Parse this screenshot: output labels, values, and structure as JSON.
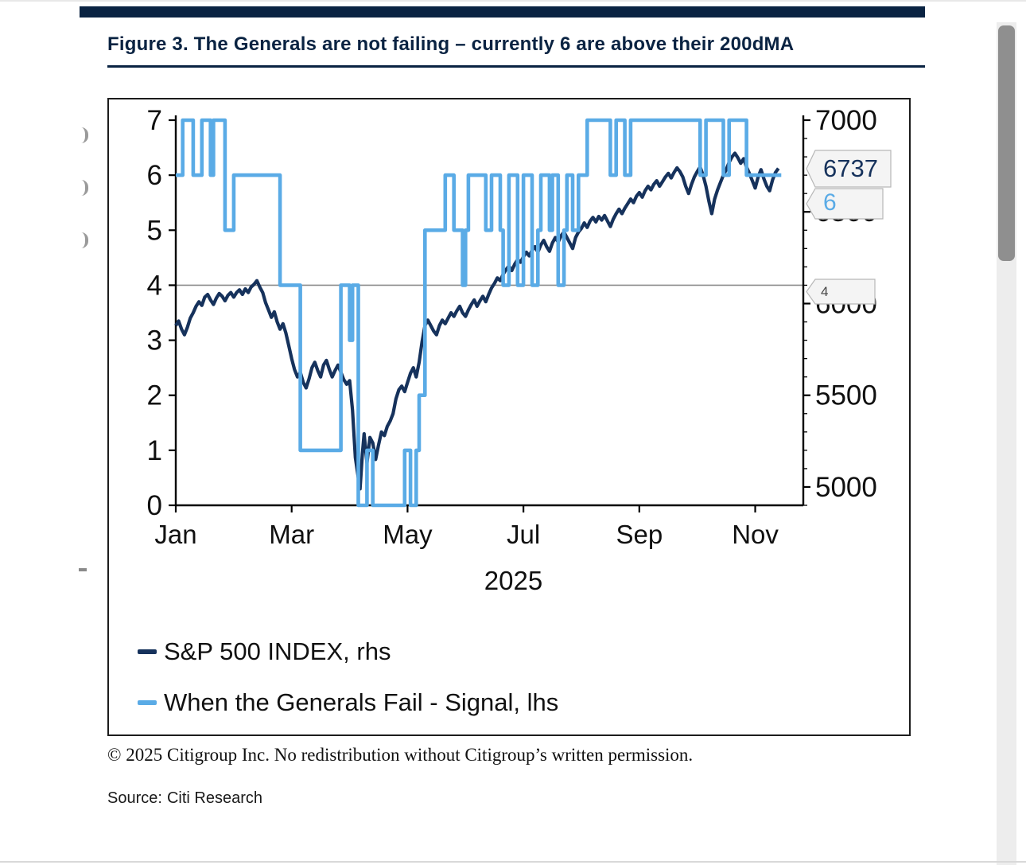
{
  "figure": {
    "caption": "Figure 3. The Generals are not failing – currently 6 are above their 200dMA",
    "footnote": "© 2025 Citigroup Inc. No redistribution without Citigroup’s written permission.",
    "source_label": "Source:",
    "source": "Citi Research"
  },
  "colors": {
    "accent_navy": "#0a2342",
    "sp500_line": "#16325c",
    "signal_line": "#5aabe6",
    "threshold_gray": "#8c8c8c"
  },
  "chart_data": {
    "type": "line",
    "title": "Figure 3. The Generals are not failing – currently 6 are above their 200dMA",
    "x": {
      "ticks": [
        "Jan",
        "Mar",
        "May",
        "Jul",
        "Sep",
        "Nov"
      ],
      "tick_months": [
        0,
        2,
        4,
        6,
        8,
        10
      ],
      "year_label": "2025",
      "domain_months": [
        0,
        10.83
      ]
    },
    "lhs_axis": {
      "label": "When the Generals Fail - Signal",
      "ticks": [
        0,
        1,
        2,
        3,
        4,
        5,
        6,
        7
      ],
      "lim": [
        0,
        7
      ]
    },
    "rhs_axis": {
      "label": "S&P 500 INDEX",
      "ticks": [
        5000,
        5500,
        6000,
        6500,
        7000
      ],
      "map_lim": [
        4900,
        7000
      ],
      "minor_step": 100
    },
    "threshold": 4,
    "grid": "single horizontal line at lhs value 4",
    "legend_position": "bottom-left inside plot frame",
    "callouts": [
      {
        "label": "6737",
        "text_color": "#16325c",
        "meaning": "current S&P 500 level, rhs"
      },
      {
        "label": "6",
        "text_color": "#5aabe6",
        "meaning": "current signal value, lhs"
      },
      {
        "label": "4",
        "text_color": "#444444",
        "meaning": "threshold level marker"
      }
    ],
    "legend": [
      {
        "label": "S&P 500 INDEX, rhs",
        "color": "#16325c"
      },
      {
        "label": "When the Generals Fail - Signal, lhs",
        "color": "#5aabe6"
      }
    ],
    "series": [
      {
        "name": "S&P 500 INDEX, rhs",
        "axis": "rhs",
        "step": false,
        "color": "#16325c",
        "points": [
          [
            0.0,
            5880
          ],
          [
            0.05,
            5905
          ],
          [
            0.1,
            5860
          ],
          [
            0.15,
            5830
          ],
          [
            0.2,
            5870
          ],
          [
            0.25,
            5920
          ],
          [
            0.3,
            5950
          ],
          [
            0.35,
            5985
          ],
          [
            0.4,
            6010
          ],
          [
            0.45,
            5990
          ],
          [
            0.5,
            6035
          ],
          [
            0.55,
            6050
          ],
          [
            0.6,
            6020
          ],
          [
            0.65,
            5995
          ],
          [
            0.7,
            6030
          ],
          [
            0.75,
            6055
          ],
          [
            0.8,
            6040
          ],
          [
            0.85,
            6015
          ],
          [
            0.9,
            6045
          ],
          [
            0.95,
            6060
          ],
          [
            1.0,
            6035
          ],
          [
            1.05,
            6060
          ],
          [
            1.1,
            6075
          ],
          [
            1.15,
            6050
          ],
          [
            1.2,
            6080
          ],
          [
            1.25,
            6060
          ],
          [
            1.3,
            6090
          ],
          [
            1.35,
            6105
          ],
          [
            1.4,
            6125
          ],
          [
            1.45,
            6090
          ],
          [
            1.5,
            6060
          ],
          [
            1.55,
            6005
          ],
          [
            1.6,
            5965
          ],
          [
            1.65,
            5925
          ],
          [
            1.7,
            5955
          ],
          [
            1.75,
            5900
          ],
          [
            1.8,
            5860
          ],
          [
            1.85,
            5890
          ],
          [
            1.9,
            5840
          ],
          [
            1.95,
            5770
          ],
          [
            2.0,
            5700
          ],
          [
            2.05,
            5640
          ],
          [
            2.1,
            5600
          ],
          [
            2.15,
            5625
          ],
          [
            2.2,
            5570
          ],
          [
            2.25,
            5540
          ],
          [
            2.3,
            5590
          ],
          [
            2.35,
            5650
          ],
          [
            2.4,
            5680
          ],
          [
            2.45,
            5635
          ],
          [
            2.5,
            5600
          ],
          [
            2.55,
            5665
          ],
          [
            2.6,
            5690
          ],
          [
            2.65,
            5640
          ],
          [
            2.7,
            5600
          ],
          [
            2.75,
            5635
          ],
          [
            2.8,
            5665
          ],
          [
            2.85,
            5625
          ],
          [
            2.9,
            5585
          ],
          [
            2.95,
            5560
          ],
          [
            3.0,
            5580
          ],
          [
            3.05,
            5420
          ],
          [
            3.1,
            5160
          ],
          [
            3.15,
            5050
          ],
          [
            3.18,
            4990
          ],
          [
            3.22,
            5180
          ],
          [
            3.25,
            5290
          ],
          [
            3.3,
            5130
          ],
          [
            3.35,
            5270
          ],
          [
            3.4,
            5240
          ],
          [
            3.45,
            5150
          ],
          [
            3.5,
            5230
          ],
          [
            3.55,
            5300
          ],
          [
            3.6,
            5280
          ],
          [
            3.65,
            5330
          ],
          [
            3.7,
            5360
          ],
          [
            3.75,
            5400
          ],
          [
            3.8,
            5480
          ],
          [
            3.85,
            5530
          ],
          [
            3.9,
            5550
          ],
          [
            3.95,
            5520
          ],
          [
            4.0,
            5570
          ],
          [
            4.05,
            5620
          ],
          [
            4.1,
            5650
          ],
          [
            4.15,
            5600
          ],
          [
            4.2,
            5680
          ],
          [
            4.25,
            5790
          ],
          [
            4.3,
            5880
          ],
          [
            4.35,
            5910
          ],
          [
            4.4,
            5880
          ],
          [
            4.45,
            5850
          ],
          [
            4.5,
            5830
          ],
          [
            4.55,
            5880
          ],
          [
            4.6,
            5910
          ],
          [
            4.65,
            5890
          ],
          [
            4.7,
            5920
          ],
          [
            4.75,
            5950
          ],
          [
            4.8,
            5930
          ],
          [
            4.85,
            5960
          ],
          [
            4.9,
            5985
          ],
          [
            4.95,
            5950
          ],
          [
            5.0,
            5930
          ],
          [
            5.05,
            5965
          ],
          [
            5.1,
            5995
          ],
          [
            5.15,
            6020
          ],
          [
            5.2,
            5985
          ],
          [
            5.25,
            6015
          ],
          [
            5.3,
            6040
          ],
          [
            5.35,
            6010
          ],
          [
            5.4,
            6050
          ],
          [
            5.45,
            6085
          ],
          [
            5.5,
            6110
          ],
          [
            5.55,
            6140
          ],
          [
            5.6,
            6125
          ],
          [
            5.65,
            6160
          ],
          [
            5.7,
            6185
          ],
          [
            5.75,
            6205
          ],
          [
            5.8,
            6180
          ],
          [
            5.85,
            6215
          ],
          [
            5.9,
            6240
          ],
          [
            5.95,
            6225
          ],
          [
            6.0,
            6255
          ],
          [
            6.05,
            6280
          ],
          [
            6.1,
            6260
          ],
          [
            6.15,
            6290
          ],
          [
            6.2,
            6310
          ],
          [
            6.25,
            6280
          ],
          [
            6.3,
            6320
          ],
          [
            6.35,
            6345
          ],
          [
            6.4,
            6310
          ],
          [
            6.45,
            6285
          ],
          [
            6.5,
            6330
          ],
          [
            6.55,
            6360
          ],
          [
            6.6,
            6335
          ],
          [
            6.65,
            6370
          ],
          [
            6.7,
            6390
          ],
          [
            6.75,
            6360
          ],
          [
            6.8,
            6330
          ],
          [
            6.85,
            6300
          ],
          [
            6.9,
            6360
          ],
          [
            6.95,
            6390
          ],
          [
            7.0,
            6410
          ],
          [
            7.05,
            6440
          ],
          [
            7.1,
            6415
          ],
          [
            7.15,
            6450
          ],
          [
            7.2,
            6470
          ],
          [
            7.25,
            6445
          ],
          [
            7.3,
            6475
          ],
          [
            7.35,
            6455
          ],
          [
            7.4,
            6480
          ],
          [
            7.45,
            6450
          ],
          [
            7.5,
            6420
          ],
          [
            7.55,
            6460
          ],
          [
            7.6,
            6490
          ],
          [
            7.65,
            6515
          ],
          [
            7.7,
            6490
          ],
          [
            7.75,
            6520
          ],
          [
            7.8,
            6545
          ],
          [
            7.85,
            6570
          ],
          [
            7.9,
            6550
          ],
          [
            7.95,
            6585
          ],
          [
            8.0,
            6605
          ],
          [
            8.05,
            6580
          ],
          [
            8.1,
            6615
          ],
          [
            8.15,
            6640
          ],
          [
            8.2,
            6620
          ],
          [
            8.25,
            6650
          ],
          [
            8.3,
            6670
          ],
          [
            8.35,
            6640
          ],
          [
            8.4,
            6665
          ],
          [
            8.45,
            6690
          ],
          [
            8.5,
            6710
          ],
          [
            8.55,
            6685
          ],
          [
            8.6,
            6715
          ],
          [
            8.65,
            6740
          ],
          [
            8.7,
            6720
          ],
          [
            8.75,
            6690
          ],
          [
            8.8,
            6640
          ],
          [
            8.85,
            6600
          ],
          [
            8.9,
            6650
          ],
          [
            8.95,
            6690
          ],
          [
            9.0,
            6720
          ],
          [
            9.05,
            6745
          ],
          [
            9.1,
            6700
          ],
          [
            9.15,
            6640
          ],
          [
            9.2,
            6560
          ],
          [
            9.25,
            6490
          ],
          [
            9.3,
            6570
          ],
          [
            9.35,
            6620
          ],
          [
            9.4,
            6660
          ],
          [
            9.45,
            6700
          ],
          [
            9.5,
            6730
          ],
          [
            9.55,
            6770
          ],
          [
            9.6,
            6800
          ],
          [
            9.65,
            6820
          ],
          [
            9.7,
            6795
          ],
          [
            9.75,
            6765
          ],
          [
            9.8,
            6790
          ],
          [
            9.85,
            6745
          ],
          [
            9.9,
            6710
          ],
          [
            9.95,
            6670
          ],
          [
            10.0,
            6630
          ],
          [
            10.05,
            6690
          ],
          [
            10.1,
            6730
          ],
          [
            10.15,
            6680
          ],
          [
            10.2,
            6640
          ],
          [
            10.25,
            6615
          ],
          [
            10.3,
            6675
          ],
          [
            10.35,
            6715
          ],
          [
            10.4,
            6737
          ]
        ]
      },
      {
        "name": "When the Generals Fail - Signal, lhs",
        "axis": "lhs",
        "step": true,
        "color": "#5aabe6",
        "points": [
          [
            0.0,
            6
          ],
          [
            0.12,
            7
          ],
          [
            0.3,
            6
          ],
          [
            0.45,
            7
          ],
          [
            0.6,
            6
          ],
          [
            0.65,
            7
          ],
          [
            0.85,
            5
          ],
          [
            1.0,
            6
          ],
          [
            1.8,
            4
          ],
          [
            2.15,
            1
          ],
          [
            2.85,
            4
          ],
          [
            3.0,
            3
          ],
          [
            3.05,
            4
          ],
          [
            3.15,
            0
          ],
          [
            3.3,
            1
          ],
          [
            3.4,
            0
          ],
          [
            3.95,
            1
          ],
          [
            4.05,
            0
          ],
          [
            4.15,
            1
          ],
          [
            4.2,
            2
          ],
          [
            4.3,
            5
          ],
          [
            4.65,
            6
          ],
          [
            4.8,
            5
          ],
          [
            4.95,
            4
          ],
          [
            5.0,
            5
          ],
          [
            5.05,
            6
          ],
          [
            5.35,
            5
          ],
          [
            5.45,
            6
          ],
          [
            5.6,
            5
          ],
          [
            5.65,
            4
          ],
          [
            5.75,
            6
          ],
          [
            5.9,
            4
          ],
          [
            6.0,
            6
          ],
          [
            6.15,
            4
          ],
          [
            6.25,
            5
          ],
          [
            6.3,
            6
          ],
          [
            6.45,
            5
          ],
          [
            6.5,
            6
          ],
          [
            6.6,
            4
          ],
          [
            6.7,
            5
          ],
          [
            6.75,
            6
          ],
          [
            6.85,
            5
          ],
          [
            6.95,
            6
          ],
          [
            7.1,
            7
          ],
          [
            7.5,
            6
          ],
          [
            7.6,
            7
          ],
          [
            7.75,
            6
          ],
          [
            7.85,
            7
          ],
          [
            9.05,
            6
          ],
          [
            9.15,
            7
          ],
          [
            9.45,
            6
          ],
          [
            9.55,
            7
          ],
          [
            9.85,
            6
          ],
          [
            10.45,
            6
          ]
        ]
      }
    ]
  }
}
